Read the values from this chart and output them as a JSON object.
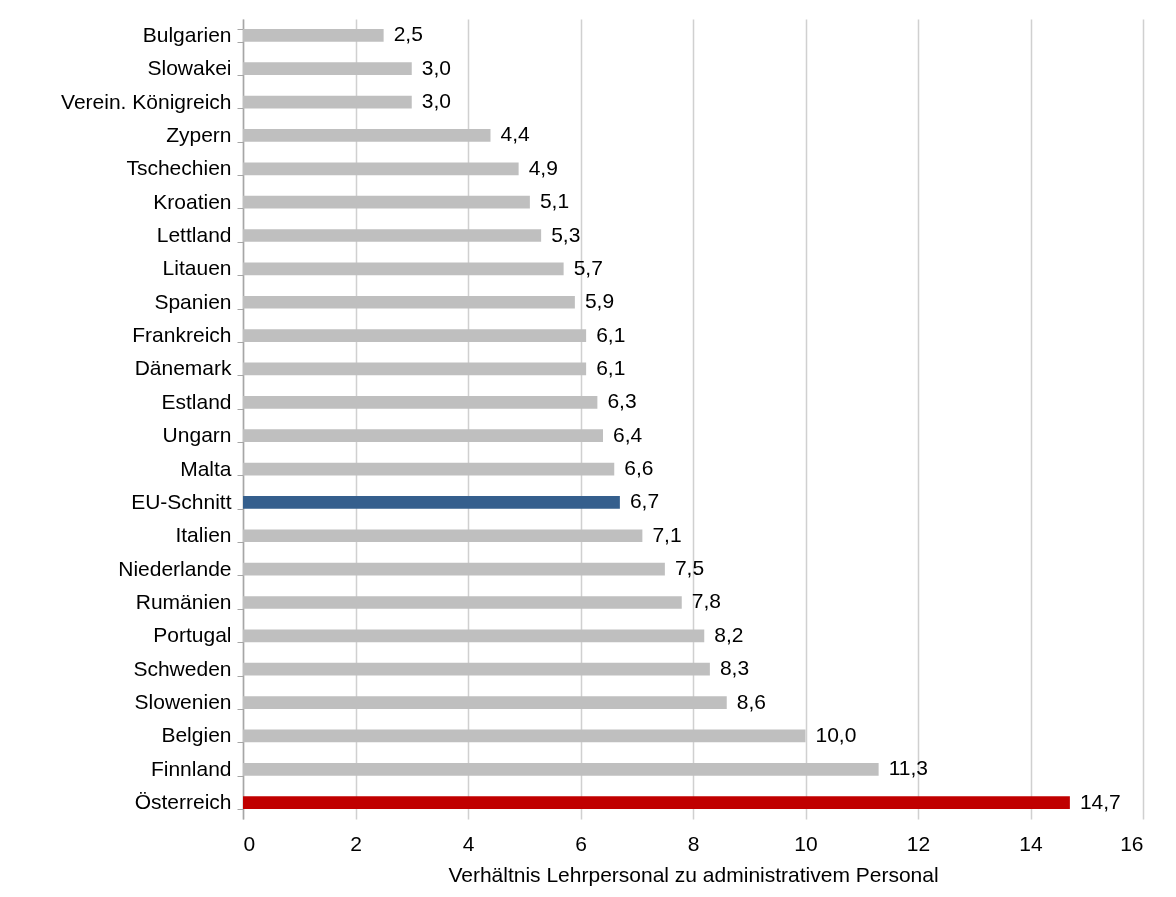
{
  "chart_data": {
    "type": "bar",
    "orientation": "horizontal",
    "xlabel": "Verhältnis Lehrpersonal zu administrativem Personal",
    "categories": [
      "Bulgarien",
      "Slowakei",
      "Verein. Königreich",
      "Zypern",
      "Tschechien",
      "Kroatien",
      "Lettland",
      "Litauen",
      "Spanien",
      "Frankreich",
      "Dänemark",
      "Estland",
      "Ungarn",
      "Malta",
      "EU-Schnitt",
      "Italien",
      "Niederlande",
      "Rumänien",
      "Portugal",
      "Schweden",
      "Slowenien",
      "Belgien",
      "Finnland",
      "Österreich"
    ],
    "values": [
      2.5,
      3.0,
      3.0,
      4.4,
      4.9,
      5.1,
      5.3,
      5.7,
      5.9,
      6.1,
      6.1,
      6.3,
      6.4,
      6.6,
      6.7,
      7.1,
      7.5,
      7.8,
      8.2,
      8.3,
      8.6,
      10.0,
      11.3,
      14.7
    ],
    "value_labels": [
      "2,5",
      "3,0",
      "3,0",
      "4,4",
      "4,9",
      "5,1",
      "5,3",
      "5,7",
      "5,9",
      "6,1",
      "6,1",
      "6,3",
      "6,4",
      "6,6",
      "6,7",
      "7,1",
      "7,5",
      "7,8",
      "8,2",
      "8,3",
      "8,6",
      "10,0",
      "11,3",
      "14,7"
    ],
    "colors": [
      "#bfbfbf",
      "#bfbfbf",
      "#bfbfbf",
      "#bfbfbf",
      "#bfbfbf",
      "#bfbfbf",
      "#bfbfbf",
      "#bfbfbf",
      "#bfbfbf",
      "#bfbfbf",
      "#bfbfbf",
      "#bfbfbf",
      "#bfbfbf",
      "#bfbfbf",
      "#355f8d",
      "#bfbfbf",
      "#bfbfbf",
      "#bfbfbf",
      "#bfbfbf",
      "#bfbfbf",
      "#bfbfbf",
      "#bfbfbf",
      "#bfbfbf",
      "#c00000"
    ],
    "xlim": [
      0,
      16
    ],
    "xticks": [
      0,
      2,
      4,
      6,
      8,
      10,
      12,
      14,
      16
    ],
    "grid": "x"
  }
}
